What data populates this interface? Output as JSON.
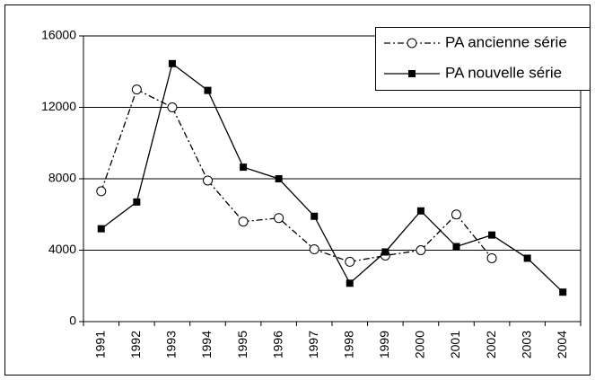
{
  "chart_data": {
    "type": "line",
    "categories": [
      "1991",
      "1992",
      "1993",
      "1994",
      "1995",
      "1996",
      "1997",
      "1998",
      "1999",
      "2000",
      "2001",
      "2002",
      "2003",
      "2004"
    ],
    "series": [
      {
        "name": "PA ancienne série",
        "color": "#000000",
        "dash": "dash-dot",
        "marker": "circle-open",
        "values": [
          7300,
          13000,
          12000,
          7900,
          5600,
          5800,
          4050,
          3350,
          3700,
          4000,
          6000,
          3550,
          null,
          null
        ]
      },
      {
        "name": "PA nouvelle série",
        "color": "#000000",
        "dash": "solid",
        "marker": "square",
        "values": [
          5200,
          6700,
          14450,
          12950,
          8650,
          8000,
          5900,
          2150,
          3900,
          6200,
          4200,
          4850,
          3550,
          1650
        ]
      }
    ],
    "ylim": [
      0,
      16000
    ],
    "yticks": [
      0,
      4000,
      8000,
      12000,
      16000
    ],
    "grid": true,
    "legend": "upper right"
  }
}
